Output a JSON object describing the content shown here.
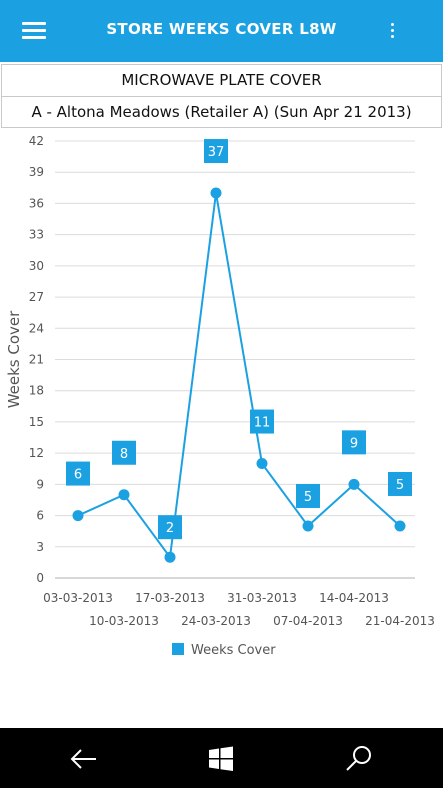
{
  "app": {
    "title": "STORE WEEKS COVER L8W"
  },
  "headers": {
    "product": "MICROWAVE PLATE COVER",
    "store": "A - Altona Meadows (Retailer A) (Sun Apr 21 2013)"
  },
  "colors": {
    "accent": "#1ba1e2",
    "navbar": "#000000"
  },
  "icons": {
    "menu": "hamburger-menu-icon",
    "more": "more-options-icon",
    "back": "back-arrow-icon",
    "start": "windows-start-icon",
    "search": "search-icon"
  },
  "chart_data": {
    "type": "line",
    "ylabel": "Weeks Cover",
    "ylim": [
      0,
      42
    ],
    "yticks": [
      0,
      3,
      6,
      9,
      12,
      15,
      18,
      21,
      24,
      27,
      30,
      33,
      36,
      39,
      42
    ],
    "grid": true,
    "legend_position": "bottom",
    "categories": [
      "03-03-2013",
      "10-03-2013",
      "17-03-2013",
      "24-03-2013",
      "31-03-2013",
      "07-04-2013",
      "14-04-2013",
      "21-04-2013"
    ],
    "series": [
      {
        "name": "Weeks Cover",
        "values": [
          6,
          8,
          2,
          37,
          11,
          5,
          9,
          5
        ]
      }
    ]
  }
}
